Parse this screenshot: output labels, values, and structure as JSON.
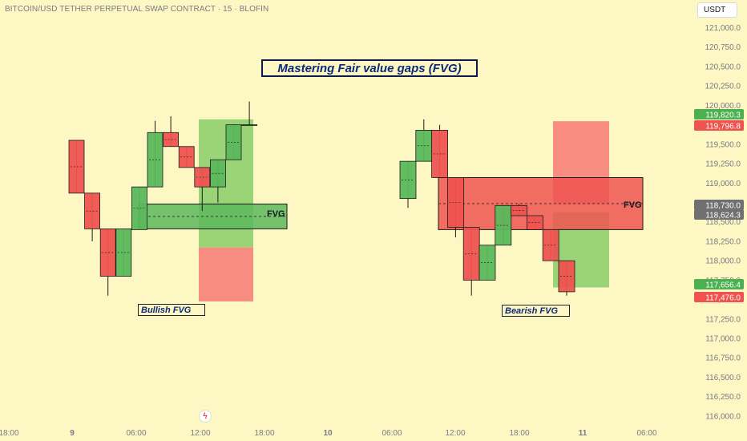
{
  "header": {
    "symbol_line": "BITCOIN/USD TETHER PERPETUAL SWAP CONTRACT · 15 · BLOFIN",
    "currency_button": "USDT"
  },
  "annotations": {
    "title": "Mastering Fair value gaps (FVG)",
    "bullish_label": "Bullish FVG",
    "bearish_label": "Bearish FVG",
    "fvg_label_left": "FVG",
    "fvg_label_right": "FVG"
  },
  "colors": {
    "background": "#fdf7c3",
    "up": "#5cb85c",
    "down": "#ef5350",
    "up_zone": "#8fcf6f",
    "down_zone": "#f7807a",
    "label_text": "#0d2a7a",
    "axis_text": "#787b86"
  },
  "chart_data": {
    "type": "candlestick",
    "y_axis": {
      "min": 115875,
      "max": 121150,
      "ticks": [
        121000,
        120750,
        120500,
        120250,
        120000,
        119750,
        119500,
        119250,
        119000,
        118750,
        118500,
        118250,
        118000,
        117750,
        117500,
        117250,
        117000,
        116750,
        116500,
        116250,
        116000
      ],
      "tick_labels": [
        "121,000.0",
        "120,750.0",
        "120,500.0",
        "120,250.0",
        "120,000.0",
        "119,750.0",
        "119,500.0",
        "119,250.0",
        "119,000.0",
        "118,750.0",
        "118,500.0",
        "118,250.0",
        "118,000.0",
        "117,750.0",
        "117,500.0",
        "117,250.0",
        "117,000.0",
        "116,750.0",
        "116,500.0",
        "116,250.0",
        "116,000.0"
      ]
    },
    "x_axis": {
      "labels": [
        "18:00",
        "9",
        "06:00",
        "12:00",
        "18:00",
        "10",
        "06:00",
        "12:00",
        "18:00",
        "11",
        "06:00"
      ]
    },
    "price_labels": [
      {
        "value": "119,820.3",
        "color": "#4caf50"
      },
      {
        "value": "119,796.8",
        "color": "#ef5350"
      },
      {
        "value": "118,730.0",
        "color": "#707070"
      },
      {
        "value": "118,624.3",
        "color": "#707070"
      },
      {
        "value": "117,656.4",
        "color": "#4caf50"
      },
      {
        "value": "117,476.0",
        "color": "#ef5350"
      }
    ],
    "series": [
      {
        "group": "bullish-example",
        "candles": [
          {
            "o": 119550,
            "h": 119550,
            "c": 118870,
            "l": 118870
          },
          {
            "o": 118870,
            "h": 118870,
            "c": 118410,
            "l": 118250
          },
          {
            "o": 118410,
            "h": 118410,
            "c": 117800,
            "l": 117550
          },
          {
            "o": 117800,
            "h": 118410,
            "c": 118410,
            "l": 117800
          },
          {
            "o": 118400,
            "h": 118950,
            "c": 118950,
            "l": 118400
          },
          {
            "o": 118950,
            "h": 119800,
            "c": 119650,
            "l": 118950
          },
          {
            "o": 119650,
            "h": 119860,
            "c": 119470,
            "l": 119470
          },
          {
            "o": 119470,
            "h": 119470,
            "c": 119200,
            "l": 119200
          },
          {
            "o": 119200,
            "h": 119200,
            "c": 118950,
            "l": 118640
          },
          {
            "o": 118950,
            "h": 119300,
            "c": 119300,
            "l": 118750
          },
          {
            "o": 119300,
            "h": 119750,
            "c": 119750,
            "l": 119300
          },
          {
            "o": 119750,
            "h": 120050,
            "c": 119750,
            "l": 119750
          }
        ]
      },
      {
        "group": "bearish-example",
        "candles": [
          {
            "o": 118800,
            "h": 119280,
            "c": 119280,
            "l": 118680
          },
          {
            "o": 119280,
            "h": 119820,
            "c": 119680,
            "l": 119280
          },
          {
            "o": 119680,
            "h": 119750,
            "c": 119070,
            "l": 119070
          },
          {
            "o": 119070,
            "h": 119070,
            "c": 118430,
            "l": 118300
          },
          {
            "o": 118430,
            "h": 118430,
            "c": 117750,
            "l": 117550
          },
          {
            "o": 117750,
            "h": 118200,
            "c": 118200,
            "l": 117750
          },
          {
            "o": 118200,
            "h": 118710,
            "c": 118710,
            "l": 118200
          },
          {
            "o": 118710,
            "h": 118730,
            "c": 118580,
            "l": 118580
          },
          {
            "o": 118580,
            "h": 118580,
            "c": 118400,
            "l": 118400
          },
          {
            "o": 118400,
            "h": 118400,
            "c": 118000,
            "l": 118000
          },
          {
            "o": 118000,
            "h": 118000,
            "c": 117600,
            "l": 117550
          }
        ]
      }
    ],
    "zones": [
      {
        "group": "bullish-example",
        "kind": "move-up",
        "top": 119820,
        "bottom": 118170,
        "color": "#8fcf6f"
      },
      {
        "group": "bullish-example",
        "kind": "move-down",
        "top": 118170,
        "bottom": 117476,
        "color": "#f7807a"
      },
      {
        "group": "bullish-example",
        "kind": "gap",
        "top": 118730,
        "bottom": 118410,
        "color": "#5cb85c",
        "label": "FVG"
      },
      {
        "group": "bearish-example",
        "kind": "move-down",
        "top": 119796,
        "bottom": 118730,
        "color": "#f7807a"
      },
      {
        "group": "bearish-example",
        "kind": "move-up",
        "top": 118624,
        "bottom": 117656,
        "color": "#8fcf6f"
      },
      {
        "group": "bearish-example",
        "kind": "gap",
        "top": 119070,
        "bottom": 118400,
        "color": "#ef5350",
        "label": "FVG"
      }
    ]
  }
}
